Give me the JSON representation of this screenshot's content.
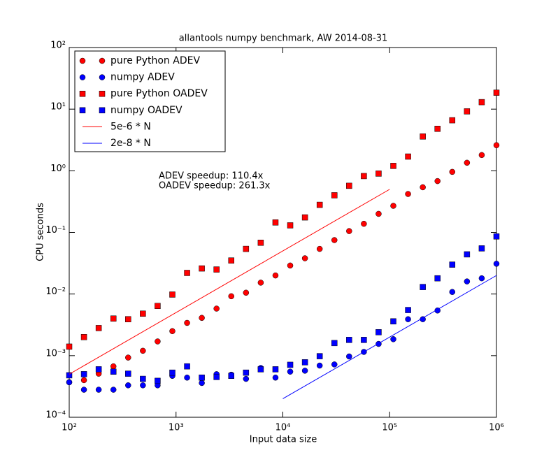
{
  "chart_data": {
    "type": "scatter",
    "title": "allantools numpy benchmark, AW 2014-08-31",
    "x_label": "Input data size",
    "y_label": "CPU seconds",
    "annotations": [
      "ADEV speedup: 110.4x",
      "OADEV speedup: 261.3x"
    ],
    "log_x": true,
    "log_y": true,
    "legend": "upper left",
    "xlim": [
      100,
      1000000
    ],
    "ylim": [
      0.0001,
      100
    ],
    "xticks": [
      {
        "value": 100,
        "label": "10²"
      },
      {
        "value": 1000,
        "label": "10³"
      },
      {
        "value": 10000,
        "label": "10⁴"
      },
      {
        "value": 100000,
        "label": "10⁵"
      },
      {
        "value": 1000000,
        "label": "10⁶"
      }
    ],
    "yticks": [
      {
        "value": 0.0001,
        "label": "10⁻⁴"
      },
      {
        "value": 0.001,
        "label": "10⁻³"
      },
      {
        "value": 0.01,
        "label": "10⁻²"
      },
      {
        "value": 0.1,
        "label": "10⁻¹"
      },
      {
        "value": 1,
        "label": "10⁰"
      },
      {
        "value": 10,
        "label": "10¹"
      },
      {
        "value": 100,
        "label": "10²"
      }
    ],
    "x": [
      100,
      137.4,
      188.7,
      259.3,
      356.2,
      489.4,
      672.3,
      923.7,
      1269,
      1743,
      2395,
      3290,
      4520,
      6210,
      8532,
      11721,
      16103,
      22122,
      30392,
      41753,
      57362,
      78805,
      108264,
      148735,
      204336,
      280722,
      385662,
      529832,
      727895,
      1000000
    ],
    "series": [
      {
        "name": "pure Python ADEV",
        "color": "#ff0000",
        "marker": "o",
        "values": [
          0.00037,
          0.0004,
          0.00051,
          0.00067,
          0.00093,
          0.0012,
          0.0017,
          0.0025,
          0.0034,
          0.0041,
          0.0058,
          0.0092,
          0.0105,
          0.0153,
          0.02,
          0.029,
          0.038,
          0.054,
          0.075,
          0.105,
          0.138,
          0.2,
          0.27,
          0.42,
          0.54,
          0.68,
          0.96,
          1.35,
          1.8,
          2.6
        ]
      },
      {
        "name": "numpy ADEV",
        "color": "#0000ff",
        "marker": "o",
        "values": [
          0.00037,
          0.00028,
          0.00028,
          0.00028,
          0.00033,
          0.00033,
          0.00033,
          0.00047,
          0.00044,
          0.00036,
          0.0005,
          0.00049,
          0.00042,
          0.00063,
          0.00044,
          0.00055,
          0.00057,
          0.00069,
          0.00072,
          0.00097,
          0.00115,
          0.00155,
          0.00185,
          0.0039,
          0.0039,
          0.0054,
          0.0108,
          0.016,
          0.018,
          0.031
        ]
      },
      {
        "name": "pure Python OADEV",
        "color": "#ff0000",
        "marker": "s",
        "values": [
          0.0014,
          0.002,
          0.0028,
          0.004,
          0.0039,
          0.0048,
          0.0064,
          0.0098,
          0.022,
          0.026,
          0.025,
          0.035,
          0.054,
          0.068,
          0.145,
          0.13,
          0.175,
          0.28,
          0.4,
          0.57,
          0.82,
          0.9,
          1.2,
          1.7,
          3.6,
          4.8,
          6.6,
          9.2,
          13,
          18.5
        ]
      },
      {
        "name": "numpy OADEV",
        "color": "#0000ff",
        "marker": "s",
        "values": [
          0.00048,
          0.0005,
          0.0006,
          0.00055,
          0.00051,
          0.00042,
          0.00039,
          0.00053,
          0.00067,
          0.00044,
          0.00045,
          0.00047,
          0.00053,
          0.0006,
          0.0006,
          0.00071,
          0.00078,
          0.00098,
          0.0016,
          0.0018,
          0.0018,
          0.0024,
          0.0036,
          0.0055,
          0.013,
          0.018,
          0.03,
          0.044,
          0.055,
          0.086
        ]
      },
      {
        "name": "5e-6 * N",
        "color": "#ff0000",
        "linestyle": "-",
        "x": [
          100,
          100000
        ],
        "values": [
          0.0005,
          0.5
        ]
      },
      {
        "name": "2e-8 * N",
        "color": "#0000ff",
        "linestyle": "-",
        "x": [
          10000,
          1000000
        ],
        "values": [
          0.0002,
          0.02
        ]
      }
    ]
  }
}
